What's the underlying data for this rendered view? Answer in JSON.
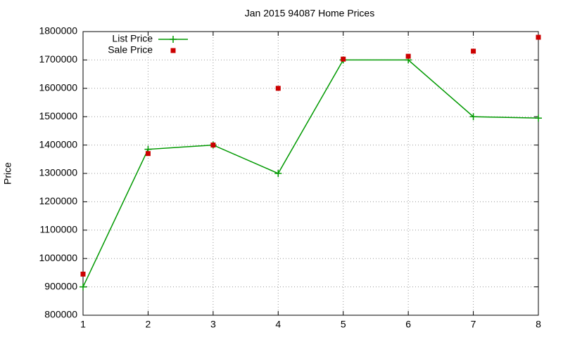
{
  "chart_data": {
    "type": "line",
    "title": "Jan 2015 94087 Home Prices",
    "y_label": "Price",
    "x": [
      1,
      2,
      3,
      4,
      5,
      6,
      7,
      8
    ],
    "series": [
      {
        "name": "List Price",
        "color": "#009900",
        "style": "linespoints",
        "values": [
          900000,
          1385000,
          1400000,
          1300000,
          1700000,
          1700000,
          1500000,
          1495000
        ]
      },
      {
        "name": "Sale Price",
        "color": "#cc0000",
        "style": "points",
        "values": [
          945000,
          1370000,
          1400000,
          1600000,
          1703000,
          1713000,
          1731000,
          1780000
        ]
      }
    ],
    "xlim": [
      1,
      8
    ],
    "xticks": [
      1,
      2,
      3,
      4,
      5,
      6,
      7,
      8
    ],
    "ylim": [
      800000,
      1800000
    ],
    "yticks": [
      800000,
      900000,
      1000000,
      1100000,
      1200000,
      1300000,
      1400000,
      1500000,
      1600000,
      1700000,
      1800000
    ],
    "grid": true,
    "legend": "top-left"
  }
}
